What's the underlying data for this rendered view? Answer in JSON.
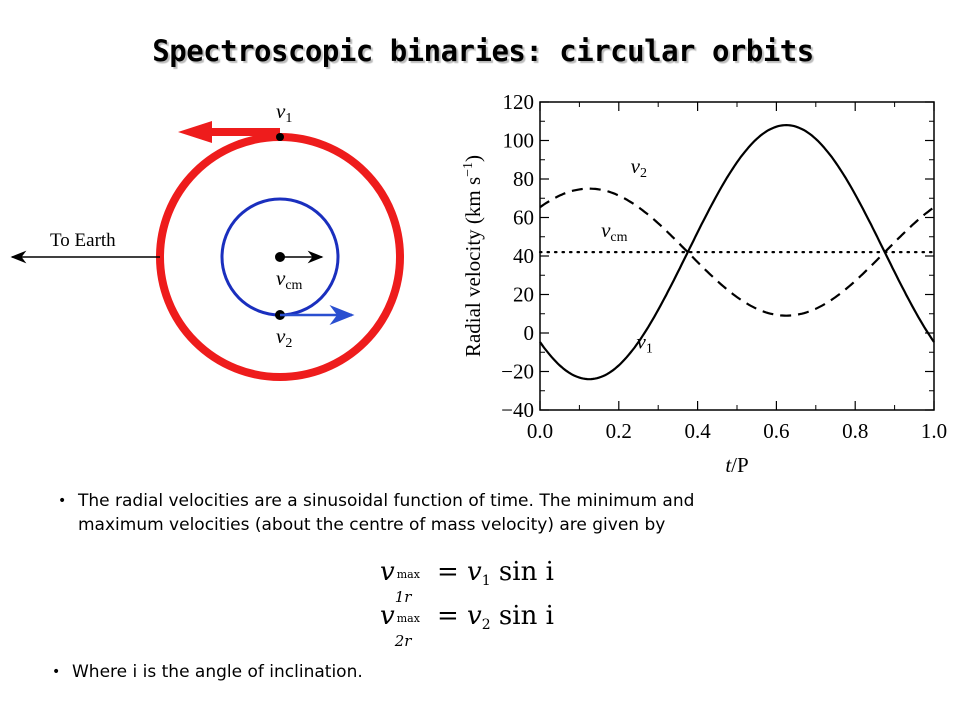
{
  "title": "Spectroscopic binaries: circular orbits",
  "diagram": {
    "earth_label": "To Earth",
    "v1_label": "v",
    "v1_sub": "1",
    "vcm_label": "v",
    "vcm_sub": "cm",
    "v2_label": "v",
    "v2_sub": "2",
    "colors": {
      "orbit1": "#ee1c1c",
      "orbit2": "#1a2fbe",
      "arrow2": "#2a4fd0"
    }
  },
  "chart_data": {
    "type": "line",
    "xlabel_italic": "t",
    "xlabel_rest": "/P",
    "ylabel": "Radial velocity (km s",
    "ylabel_sup": "−1",
    "ylabel_close": ")",
    "xlim": [
      0.0,
      1.0
    ],
    "ylim": [
      -40,
      120
    ],
    "x_ticks": [
      "0.0",
      "0.2",
      "0.4",
      "0.6",
      "0.8",
      "1.0"
    ],
    "y_ticks": [
      "120",
      "100",
      "80",
      "60",
      "40",
      "20",
      "0",
      "−20",
      "−40"
    ],
    "series": [
      {
        "name": "v1",
        "style": "solid",
        "vcm": 42,
        "amplitude": 66,
        "phase": "max at t/P=0.625"
      },
      {
        "name": "v2",
        "style": "dashed",
        "vcm": 42,
        "amplitude": 33,
        "phase": "max at t/P=0.125"
      },
      {
        "name": "vcm",
        "style": "dotted",
        "value": 42
      }
    ],
    "labels": {
      "v1": {
        "main": "v",
        "sub": "1"
      },
      "v2": {
        "main": "v",
        "sub": "2"
      },
      "vcm": {
        "main": "v",
        "sub": "cm"
      }
    }
  },
  "text": {
    "bullet1_line1": "The radial velocities are a sinusoidal function of time.  The minimum and",
    "bullet1_line2": "maximum velocities (about the centre of mass velocity) are given by",
    "eq1": {
      "lhs_v": "v",
      "lhs_sup": "max",
      "lhs_sub": "1r",
      "rhs_v": "v",
      "rhs_sub": "1",
      "rhs_rest": "sin i"
    },
    "eq2": {
      "lhs_v": "v",
      "lhs_sup": "max",
      "lhs_sub": "2r",
      "rhs_v": "v",
      "rhs_sub": "2",
      "rhs_rest": "sin i"
    },
    "bullet2": "Where i is the angle of inclination.",
    "bullet_char": "•"
  }
}
